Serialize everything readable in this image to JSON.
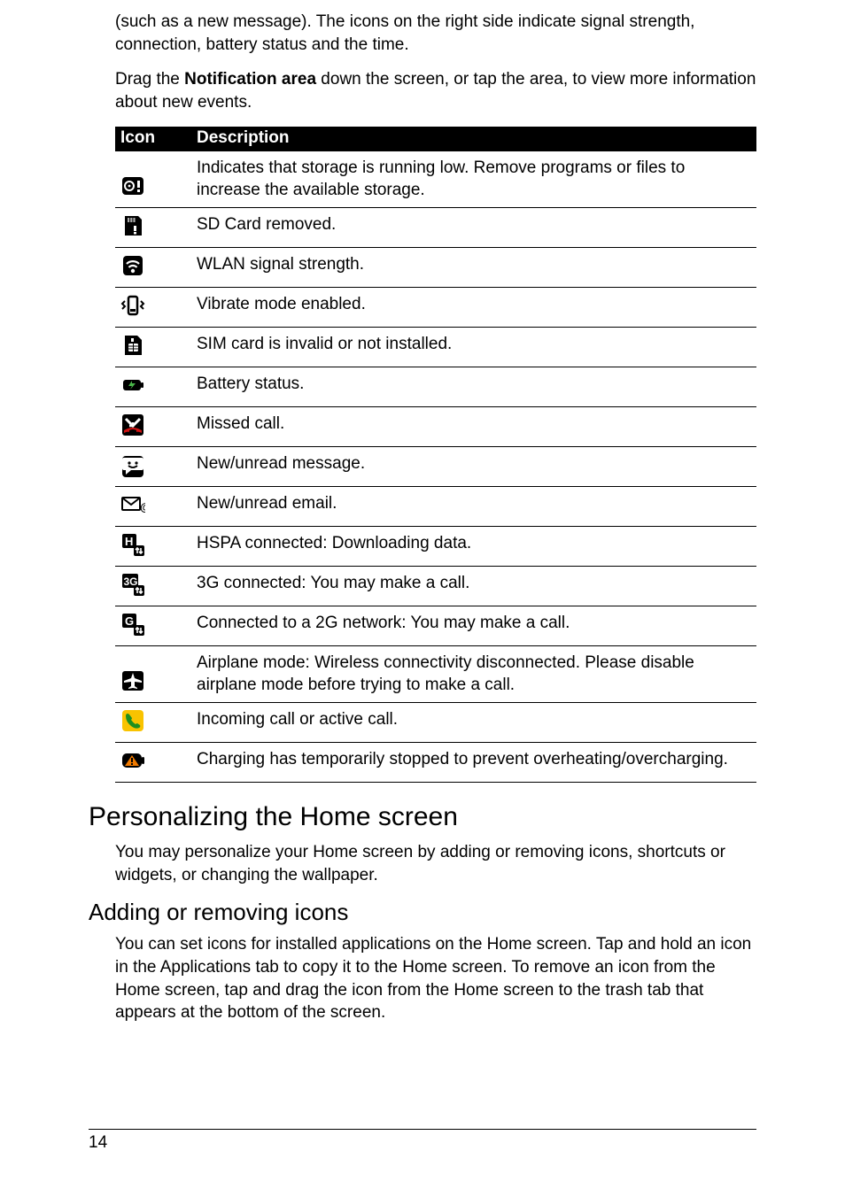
{
  "intro": {
    "p1": "(such as a new message). The icons on the right side indicate signal strength, connection, battery status and the time.",
    "p2a": "Drag the ",
    "p2b": "Notification area",
    "p2c": " down the screen, or tap the area, to view more information about new events."
  },
  "table": {
    "headers": {
      "icon": "Icon",
      "desc": "Description"
    },
    "rows": [
      {
        "iconKey": "storage-low",
        "desc": "Indicates that storage is running low. Remove programs or files to increase the available storage."
      },
      {
        "iconKey": "sd-removed",
        "desc": "SD Card removed."
      },
      {
        "iconKey": "wlan",
        "desc": "WLAN signal strength."
      },
      {
        "iconKey": "vibrate",
        "desc": "Vibrate mode enabled."
      },
      {
        "iconKey": "sim-invalid",
        "desc": "SIM card is invalid or not installed."
      },
      {
        "iconKey": "battery",
        "desc": "Battery status."
      },
      {
        "iconKey": "missed-call",
        "desc": "Missed call."
      },
      {
        "iconKey": "new-message",
        "desc": "New/unread message."
      },
      {
        "iconKey": "new-email",
        "desc": "New/unread email."
      },
      {
        "iconKey": "hspa",
        "desc": "HSPA connected: Downloading data."
      },
      {
        "iconKey": "3g",
        "desc": "3G connected: You may make a call."
      },
      {
        "iconKey": "2g",
        "desc": "Connected to a 2G network: You may make a call."
      },
      {
        "iconKey": "airplane",
        "desc": "Airplane mode: Wireless connectivity disconnected. Please disable airplane mode before trying to make a call."
      },
      {
        "iconKey": "incoming-call",
        "desc": "Incoming call or active call."
      },
      {
        "iconKey": "charge-stopped",
        "desc": "Charging has temporarily stopped to prevent overheating/overcharging."
      }
    ]
  },
  "sections": {
    "h_personalize": "Personalizing the Home screen",
    "p_personalize": "You may personalize your Home screen by adding or removing icons, shortcuts or widgets, or changing the wallpaper.",
    "h_addremove": "Adding or removing icons",
    "p_addremove": "You can set icons for installed applications on the Home screen. Tap and hold an icon in the Applications tab to copy it to the Home screen. To remove an icon from the Home screen, tap and drag the icon from the Home screen to the trash tab that appears at the bottom of the screen."
  },
  "footer": {
    "page": "14"
  },
  "iconStyle": {
    "black": "#000000",
    "white": "#ffffff",
    "gray": "#a9a9a9",
    "red": "#d11313",
    "green": "#4ab749",
    "darkgreen": "#1f8f1f",
    "yellow": "#f9c300",
    "orange": "#f07a00"
  }
}
